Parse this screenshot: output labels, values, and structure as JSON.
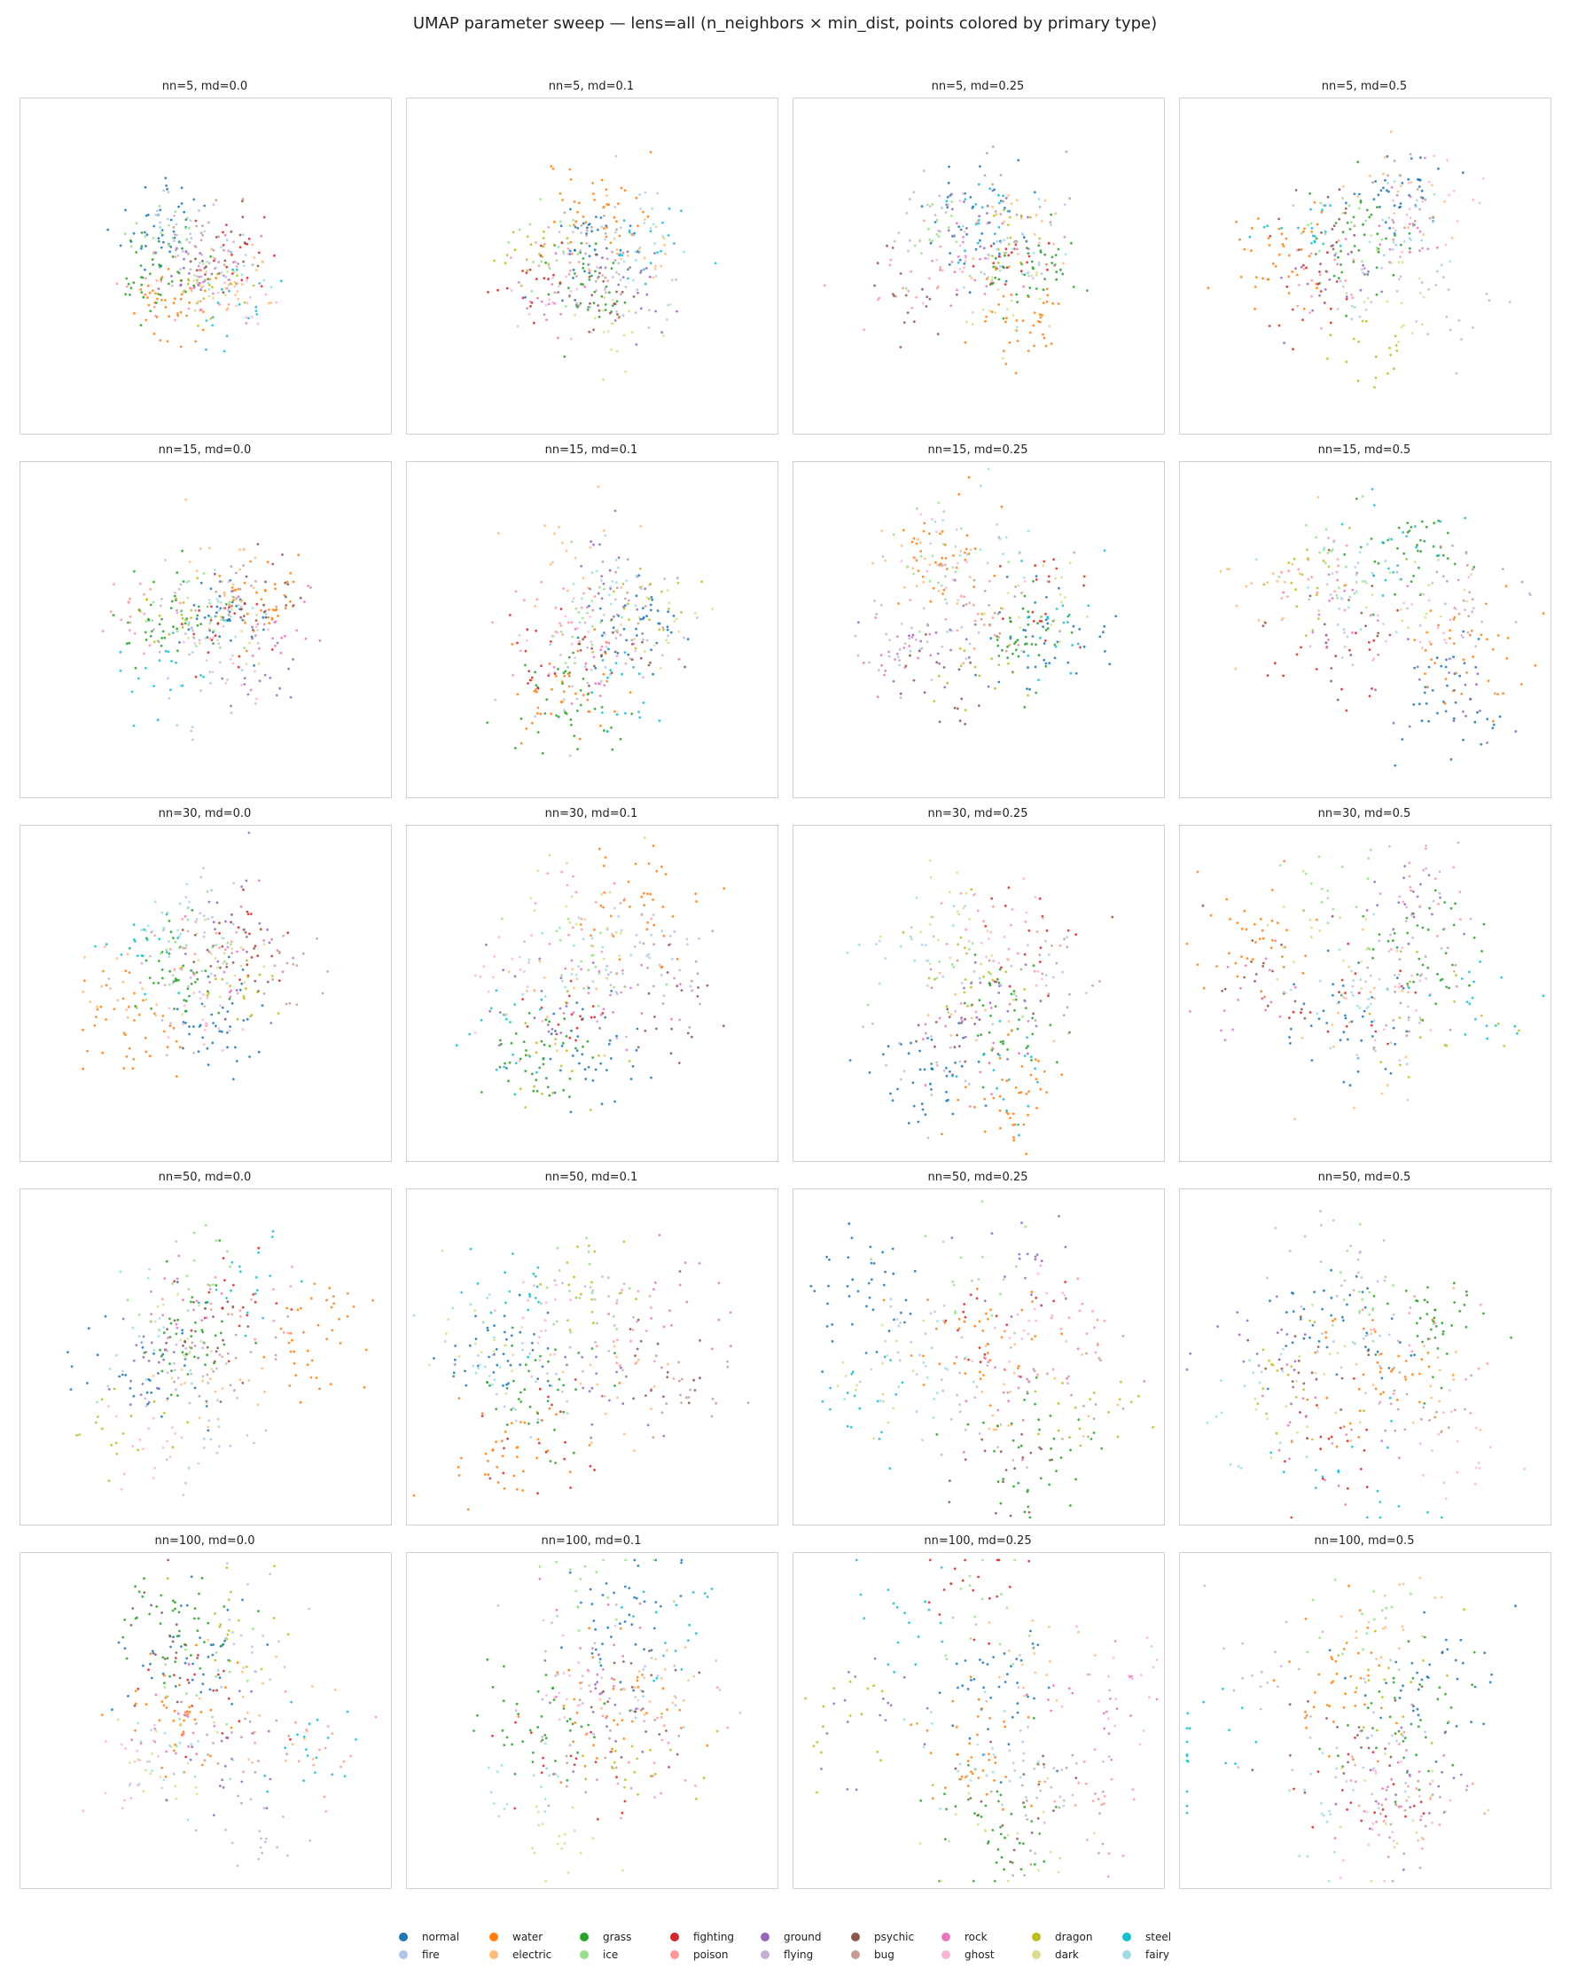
{
  "figure": {
    "title": "UMAP parameter sweep — lens=all (n_neighbors × min_dist, points colored by primary type)"
  },
  "legend": {
    "items": [
      {
        "label": "normal",
        "color": "#1f77b4"
      },
      {
        "label": "fire",
        "color": "#aec7e8"
      },
      {
        "label": "water",
        "color": "#ff7f0e"
      },
      {
        "label": "electric",
        "color": "#ffbb78"
      },
      {
        "label": "grass",
        "color": "#2ca02c"
      },
      {
        "label": "ice",
        "color": "#98df8a"
      },
      {
        "label": "fighting",
        "color": "#d62728"
      },
      {
        "label": "poison",
        "color": "#ff9896"
      },
      {
        "label": "ground",
        "color": "#9467bd"
      },
      {
        "label": "flying",
        "color": "#c5b0d5"
      },
      {
        "label": "psychic",
        "color": "#8c564b"
      },
      {
        "label": "bug",
        "color": "#c49c94"
      },
      {
        "label": "rock",
        "color": "#e377c2"
      },
      {
        "label": "ghost",
        "color": "#f7b6d2"
      },
      {
        "label": "dragon",
        "color": "#bcbd22"
      },
      {
        "label": "dark",
        "color": "#dbdb8d"
      },
      {
        "label": "steel",
        "color": "#17becf"
      },
      {
        "label": "fairy",
        "color": "#9edae5"
      }
    ]
  },
  "chart_data": {
    "type": "scatter",
    "grid": false,
    "axes_visible": false,
    "n_neighbors": [
      5,
      15,
      30,
      50,
      100
    ],
    "min_dist": [
      0.0,
      0.1,
      0.25,
      0.5
    ],
    "panels": [
      {
        "title": "nn=5, md=0.0"
      },
      {
        "title": "nn=5, md=0.1"
      },
      {
        "title": "nn=5, md=0.25"
      },
      {
        "title": "nn=5, md=0.5"
      },
      {
        "title": "nn=15, md=0.0"
      },
      {
        "title": "nn=15, md=0.1"
      },
      {
        "title": "nn=15, md=0.25"
      },
      {
        "title": "nn=15, md=0.5"
      },
      {
        "title": "nn=30, md=0.0"
      },
      {
        "title": "nn=30, md=0.1"
      },
      {
        "title": "nn=30, md=0.25"
      },
      {
        "title": "nn=30, md=0.5"
      },
      {
        "title": "nn=50, md=0.0"
      },
      {
        "title": "nn=50, md=0.1"
      },
      {
        "title": "nn=50, md=0.25"
      },
      {
        "title": "nn=50, md=0.5"
      },
      {
        "title": "nn=100, md=0.0"
      },
      {
        "title": "nn=100, md=0.1"
      },
      {
        "title": "nn=100, md=0.25"
      },
      {
        "title": "nn=100, md=0.5"
      }
    ]
  }
}
